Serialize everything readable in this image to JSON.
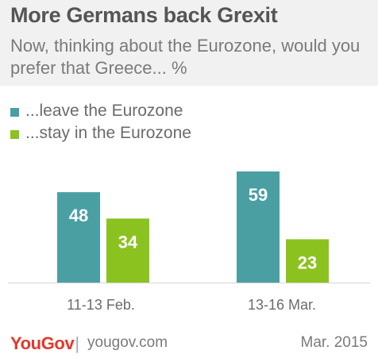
{
  "header": {
    "title": "More Germans back Grexit",
    "subtitle": "Now, thinking about the Eurozone, would you prefer that Greece... %"
  },
  "chart_data": {
    "type": "bar",
    "categories": [
      "11-13 Feb.",
      "13-16 Mar."
    ],
    "series": [
      {
        "name": "...leave the Eurozone",
        "values": [
          48,
          59
        ],
        "color": "#4a9fa3"
      },
      {
        "name": "...stay in the Eurozone",
        "values": [
          34,
          23
        ],
        "color": "#8cc220"
      }
    ],
    "title": "More Germans back Grexit",
    "subtitle": "Now, thinking about the Eurozone, would you prefer that Greece... %",
    "xlabel": "",
    "ylabel": "",
    "ylim": [
      0,
      60
    ],
    "grid": false,
    "legend": "top-left",
    "data_labels": true
  },
  "footer": {
    "logo": "YouGov",
    "url": "yougov.com",
    "date": "Mar. 2015"
  },
  "colors": {
    "logo": "#e5372b",
    "header_bg": "#f1f1f1",
    "label_text": "#ffffff"
  }
}
